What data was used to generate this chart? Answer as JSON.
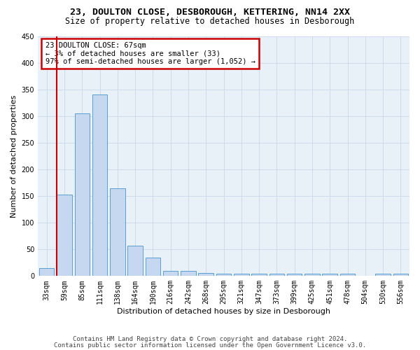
{
  "title_line1": "23, DOULTON CLOSE, DESBOROUGH, KETTERING, NN14 2XX",
  "title_line2": "Size of property relative to detached houses in Desborough",
  "xlabel": "Distribution of detached houses by size in Desborough",
  "ylabel": "Number of detached properties",
  "bar_color": "#c5d8f0",
  "bar_edge_color": "#5a9fd4",
  "categories": [
    "33sqm",
    "59sqm",
    "85sqm",
    "111sqm",
    "138sqm",
    "164sqm",
    "190sqm",
    "216sqm",
    "242sqm",
    "268sqm",
    "295sqm",
    "321sqm",
    "347sqm",
    "373sqm",
    "399sqm",
    "425sqm",
    "451sqm",
    "478sqm",
    "504sqm",
    "530sqm",
    "556sqm"
  ],
  "values": [
    15,
    153,
    305,
    340,
    165,
    57,
    34,
    10,
    9,
    6,
    4,
    4,
    5,
    5,
    5,
    4,
    4,
    4,
    0,
    4,
    4
  ],
  "vline_color": "#cc0000",
  "annotation_text": "23 DOULTON CLOSE: 67sqm\n← 3% of detached houses are smaller (33)\n97% of semi-detached houses are larger (1,052) →",
  "annotation_box_color": "#cc0000",
  "ylim": [
    0,
    450
  ],
  "yticks": [
    0,
    50,
    100,
    150,
    200,
    250,
    300,
    350,
    400,
    450
  ],
  "footnote_line1": "Contains HM Land Registry data © Crown copyright and database right 2024.",
  "footnote_line2": "Contains public sector information licensed under the Open Government Licence v3.0.",
  "background_color": "#ffffff",
  "ax_background": "#e8f0f8",
  "grid_color": "#c8d8e8",
  "title_fontsize": 9.5,
  "subtitle_fontsize": 8.5,
  "axis_label_fontsize": 8,
  "tick_fontsize": 7,
  "annotation_fontsize": 7.5,
  "footnote_fontsize": 6.5
}
